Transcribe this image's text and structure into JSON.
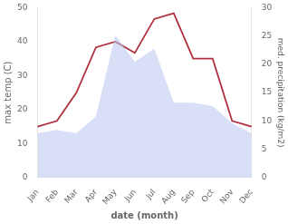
{
  "chart_data": {
    "type": "line",
    "xlabel": "date (month)",
    "ylabel": "max temp (C)",
    "y2label": "med. precipitation (kg/m2)",
    "categories": [
      "Jan",
      "Feb",
      "Mar",
      "Apr",
      "May",
      "Jun",
      "Jul",
      "Aug",
      "Sep",
      "Oct",
      "Nov",
      "Dec"
    ],
    "series": [
      {
        "type": "area",
        "color": "#b8c4f0",
        "values": [
          13,
          14,
          13,
          18,
          42,
          34,
          38,
          22,
          22,
          21,
          16,
          13
        ]
      },
      {
        "type": "line",
        "color": "#b03040",
        "axis": "y2",
        "values": [
          9,
          10,
          15,
          23,
          24,
          22,
          28,
          29,
          21,
          21,
          10,
          9
        ]
      }
    ],
    "ylim": [
      0,
      50
    ],
    "yticks": [
      0,
      10,
      20,
      30,
      40,
      50
    ],
    "y2lim": [
      0,
      30
    ],
    "y2ticks": [
      0,
      5,
      10,
      15,
      20,
      25,
      30
    ],
    "grid": false
  }
}
